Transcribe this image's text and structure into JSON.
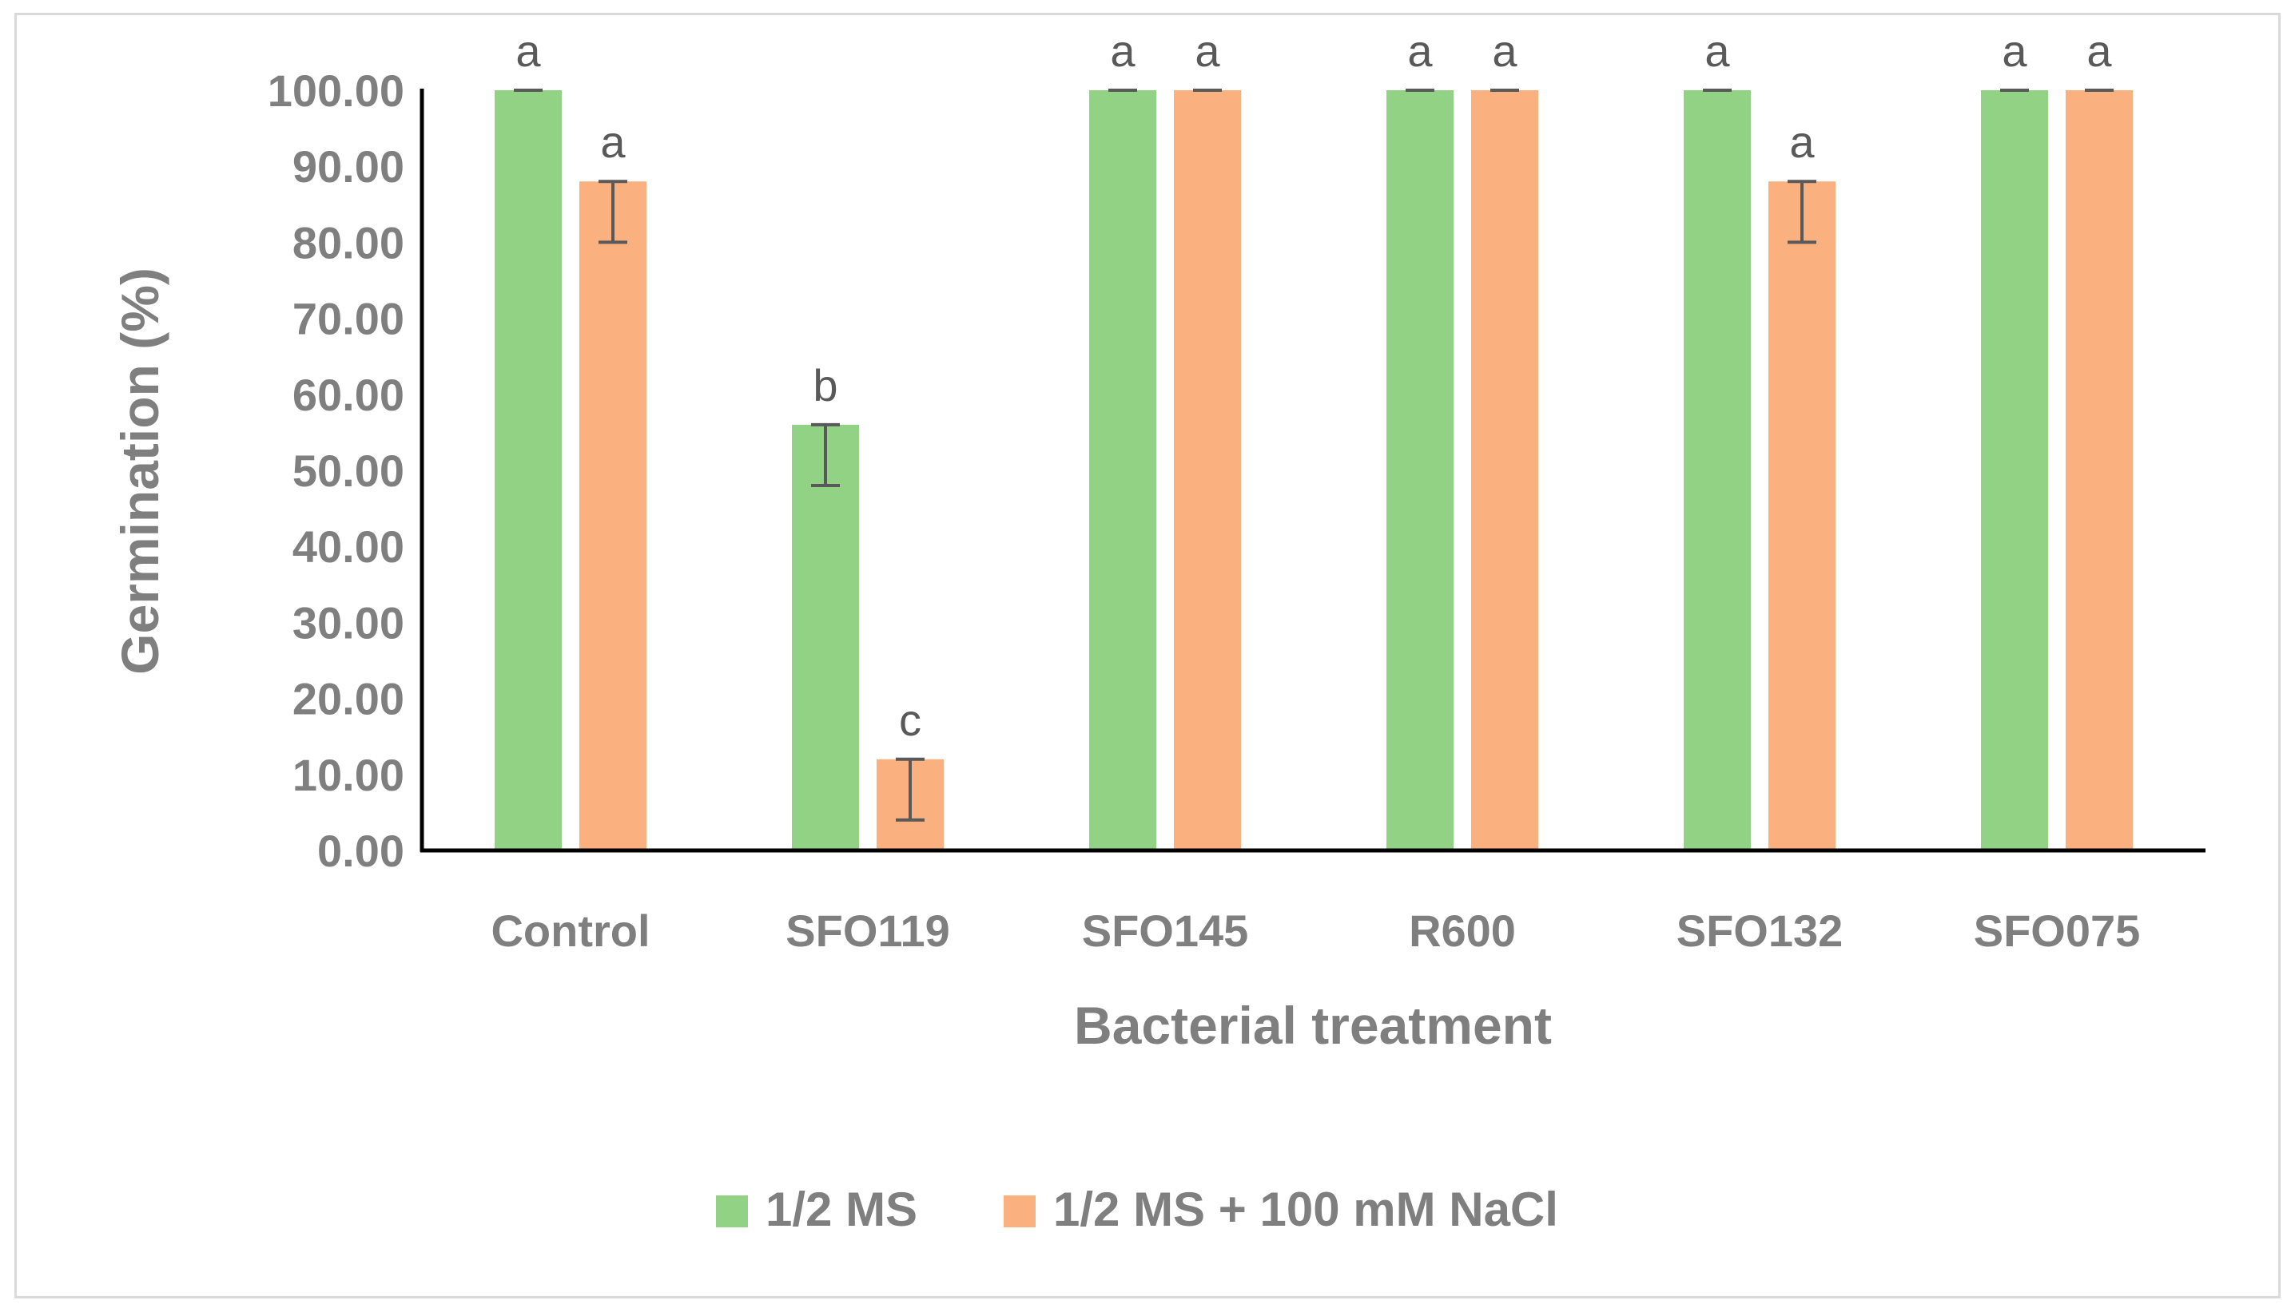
{
  "chart_data": {
    "type": "bar",
    "title": "",
    "xlabel": "Bacterial treatment",
    "ylabel": "Germination (%)",
    "ylim": [
      0,
      100
    ],
    "ytick_step": 10,
    "ytick_labels": [
      "0.00",
      "10.00",
      "20.00",
      "30.00",
      "40.00",
      "50.00",
      "60.00",
      "70.00",
      "80.00",
      "90.00",
      "100.00"
    ],
    "categories": [
      "Control",
      "SFO119",
      "SFO145",
      "R600",
      "SFO132",
      "SFO075"
    ],
    "series": [
      {
        "name": "1/2 MS",
        "color": "#92d285",
        "values": [
          100,
          56,
          100,
          100,
          100,
          100
        ],
        "errors": [
          0,
          8,
          0,
          0,
          0,
          0
        ],
        "letters": [
          "a",
          "b",
          "a",
          "a",
          "a",
          "a"
        ]
      },
      {
        "name": "1/2 MS + 100 mM NaCl",
        "color": "#fbb17f",
        "values": [
          88,
          12,
          100,
          100,
          88,
          100
        ],
        "errors": [
          8,
          8,
          0,
          0,
          8,
          0
        ],
        "letters": [
          "a",
          "c",
          "a",
          "a",
          "a",
          "a"
        ]
      }
    ],
    "legend_position": "bottom-center",
    "grid": false
  }
}
